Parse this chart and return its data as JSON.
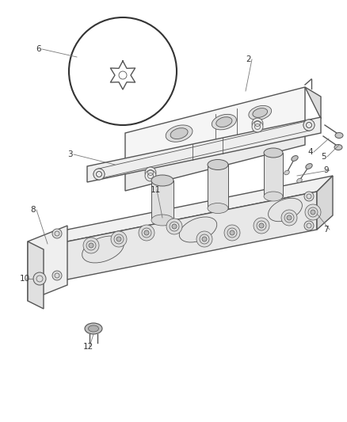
{
  "bg_color": "#ffffff",
  "line_color": "#555555",
  "label_color": "#444444",
  "fig_width": 4.38,
  "fig_height": 5.33,
  "dpi": 100
}
